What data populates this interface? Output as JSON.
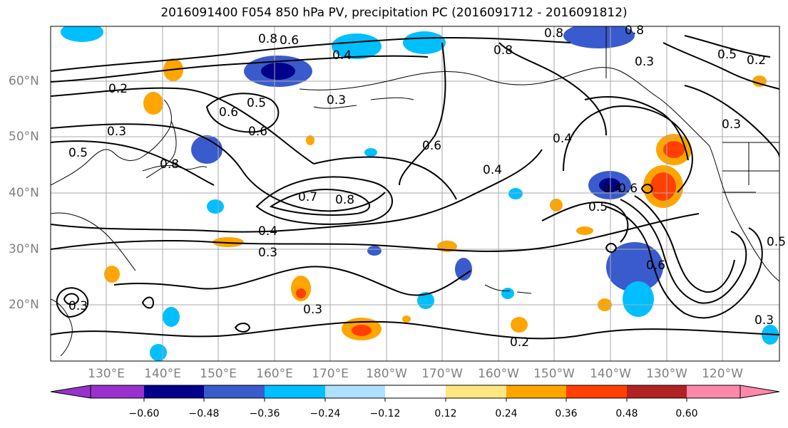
{
  "title": "2016091400 F054 850 hPa PV, precipitation PC (2016091712 - 2016091812)",
  "lat_labels": [
    "60°N",
    "50°N",
    "40°N",
    "30°N",
    "20°N"
  ],
  "lon_labels": [
    "130°E",
    "140°E",
    "150°E",
    "160°E",
    "170°E",
    "180°W",
    "170°W",
    "160°W",
    "150°W",
    "140°W",
    "130°W",
    "120°W"
  ],
  "contour_labels": [
    "0.8",
    "0.6",
    "0.4",
    "0.3",
    "0.2",
    "0.3",
    "0.6",
    "0.5",
    "0.6",
    "0.7",
    "0.8",
    "0.4",
    "0.3",
    "0.6",
    "0.4",
    "0.8",
    "0.5",
    "0.3",
    "0.8",
    "0.5",
    "0.3",
    "0.4",
    "0.8",
    "0.5",
    "0.6",
    "0.2",
    "0.3",
    "0.5",
    "0.3",
    "0.2",
    "0.8",
    "0.3",
    "0.4",
    "0.6"
  ],
  "colorbar": {
    "ticks": [
      "−0.60",
      "−0.48",
      "−0.36",
      "−0.24",
      "−0.12",
      "0.12",
      "0.24",
      "0.36",
      "0.48",
      "0.60"
    ],
    "colors": [
      "#9932cc",
      "#00008b",
      "#3a5bcd",
      "#00bfff",
      "#b0e0ff",
      "#ffffff",
      "#ffe680",
      "#ffa500",
      "#ff4000",
      "#b22222",
      "#ff88aa"
    ]
  },
  "chart_data": {
    "type": "map",
    "title": "2016091400 F054 850 hPa PV, precipitation PC (2016091712 - 2016091812)",
    "fields": [
      "850 hPa PV contours",
      "precipitation PC shaded"
    ],
    "lon_range": [
      "120°E",
      "110°W"
    ],
    "lat_range": [
      "10°N",
      "70°N"
    ],
    "grid": true,
    "colorbar_ticks": [
      -0.6,
      -0.48,
      -0.36,
      -0.24,
      -0.12,
      0.12,
      0.24,
      0.36,
      0.48,
      0.6
    ],
    "contour_levels_shown": [
      0.2,
      0.3,
      0.4,
      0.5,
      0.6,
      0.7,
      0.8
    ]
  }
}
